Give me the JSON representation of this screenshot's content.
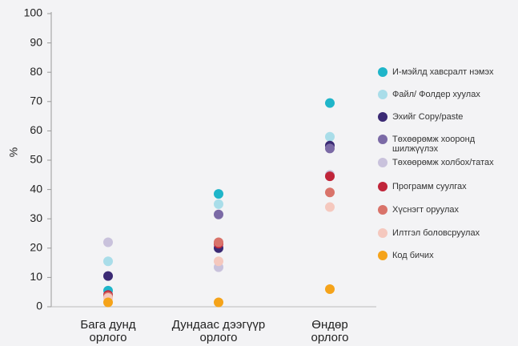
{
  "chart_data": {
    "type": "scatter",
    "y_label": "%",
    "categories": [
      "Бага дунд\nорлого",
      "Дундаас дээгүүр\nорлого",
      "Өндөр\nорлого"
    ],
    "ylim": [
      0,
      100
    ],
    "yticks": [
      0,
      10,
      20,
      30,
      40,
      50,
      60,
      70,
      80,
      90,
      100
    ],
    "series": [
      {
        "name": "И-мэйлд хавсралт нэмэх",
        "color": "#1fb5c9",
        "values": [
          5.5,
          38.5,
          69.5
        ]
      },
      {
        "name": "Файл/ Фолдер хуулах",
        "color": "#a9dde9",
        "values": [
          15.5,
          35,
          58
        ]
      },
      {
        "name": "Эхийг Copy/paste",
        "color": "#3b2a74",
        "values": [
          10.5,
          20,
          55
        ]
      },
      {
        "name": "Төхөөрөмж хооронд\nшилжүүлэх",
        "color": "#7b6aa6",
        "values": [
          4,
          31.5,
          54
        ]
      },
      {
        "name": "Төхөөрөмж холбох/татах",
        "color": "#c9c2dc",
        "values": [
          22,
          13.5,
          45
        ]
      },
      {
        "name": "Программ суулгах",
        "color": "#c0253a",
        "values": [
          4,
          21.5,
          44.5
        ]
      },
      {
        "name": "Хүснэгт оруулах",
        "color": "#d9736a",
        "values": [
          3.5,
          22,
          39
        ]
      },
      {
        "name": "Илтгэл боловсруулах",
        "color": "#f5c8be",
        "values": [
          3,
          15.5,
          34
        ]
      },
      {
        "name": "Код бичих",
        "color": "#f5a31a",
        "values": [
          1.5,
          1.5,
          6
        ]
      }
    ]
  }
}
